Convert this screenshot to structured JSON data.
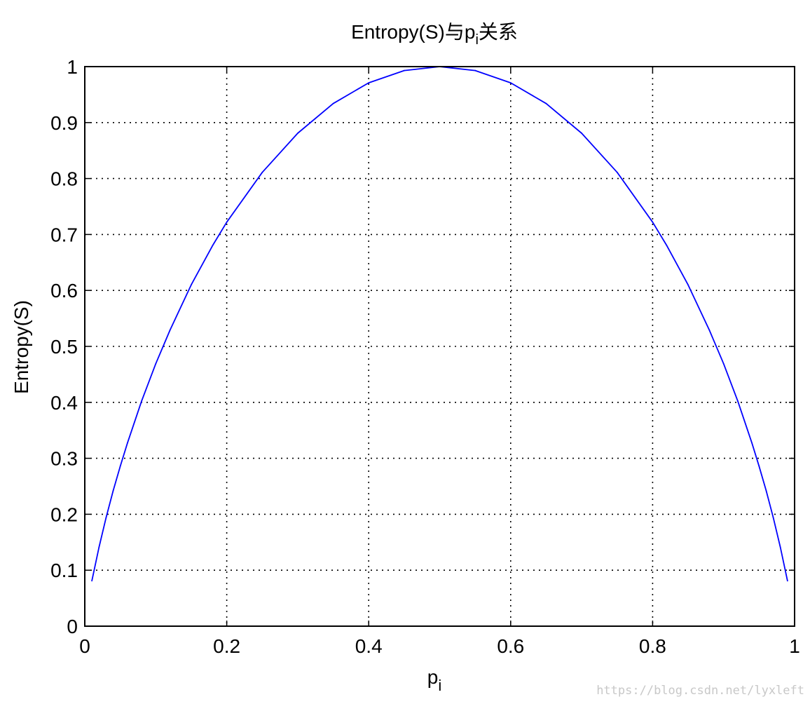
{
  "chart_data": {
    "type": "line",
    "title_main": "Entropy(S)与p",
    "title_sub": "i",
    "title_suffix": "关系",
    "xlabel_main": "p",
    "xlabel_sub": "i",
    "ylabel": "Entropy(S)",
    "xlim": [
      0,
      1
    ],
    "ylim": [
      0,
      1
    ],
    "grid": true,
    "x_ticks": [
      "0",
      "0.2",
      "0.4",
      "0.6",
      "0.8",
      "1"
    ],
    "y_ticks": [
      "0",
      "0.1",
      "0.2",
      "0.3",
      "0.4",
      "0.5",
      "0.6",
      "0.7",
      "0.8",
      "0.9",
      "1"
    ],
    "series": [
      {
        "color": "#0000ff",
        "x": [
          0.01,
          0.02,
          0.03,
          0.04,
          0.05,
          0.06,
          0.08,
          0.1,
          0.12,
          0.15,
          0.18,
          0.2,
          0.25,
          0.3,
          0.35,
          0.4,
          0.45,
          0.5,
          0.55,
          0.6,
          0.65,
          0.7,
          0.75,
          0.8,
          0.82,
          0.85,
          0.88,
          0.9,
          0.92,
          0.94,
          0.95,
          0.96,
          0.97,
          0.98,
          0.99
        ],
        "y": [
          0.081,
          0.141,
          0.194,
          0.242,
          0.286,
          0.327,
          0.402,
          0.469,
          0.529,
          0.61,
          0.68,
          0.722,
          0.811,
          0.881,
          0.934,
          0.971,
          0.993,
          1.0,
          0.993,
          0.971,
          0.934,
          0.881,
          0.811,
          0.722,
          0.68,
          0.61,
          0.529,
          0.469,
          0.402,
          0.327,
          0.286,
          0.242,
          0.194,
          0.141,
          0.081
        ]
      }
    ]
  },
  "watermark": "https://blog.csdn.net/lyxleft"
}
